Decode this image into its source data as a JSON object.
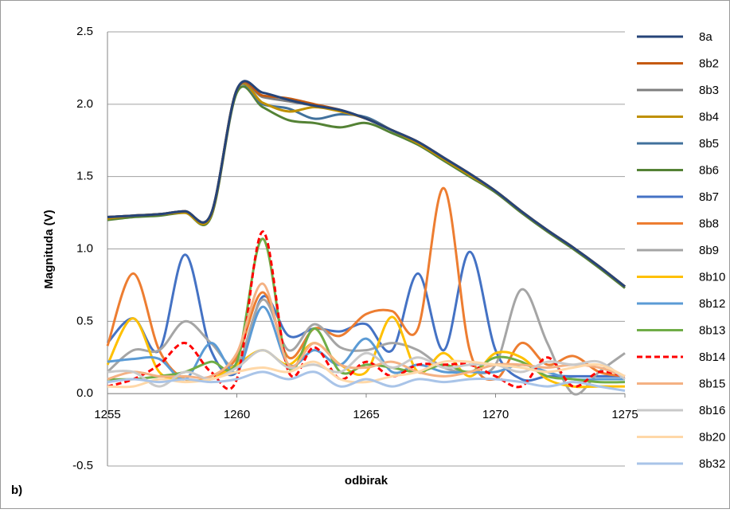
{
  "chart_data": {
    "type": "line",
    "panel_label": "b)",
    "x_label": "odbirak",
    "y_label": "Magnituda (V)",
    "xlim": [
      1255,
      1275
    ],
    "xticks": [
      1255,
      1260,
      1265,
      1270,
      1275
    ],
    "ylim": [
      -0.5,
      2.5
    ],
    "yticks": [
      2.5,
      {
        "value": 2,
        "label": "2.0"
      },
      1.5,
      {
        "value": 1,
        "label": "1.0"
      },
      0.5,
      {
        "value": 0,
        "label": "0.0"
      },
      -0.5
    ],
    "grid": true,
    "smooth": true,
    "legend": "right",
    "x": [
      1255,
      1256,
      1257,
      1258,
      1259,
      1260,
      1261,
      1262,
      1263,
      1264,
      1265,
      1266,
      1267,
      1268,
      1269,
      1270,
      1271,
      1272,
      1273,
      1274,
      1275
    ],
    "series": [
      {
        "name": "8a",
        "color": "#264478",
        "values": [
          1.22,
          1.23,
          1.24,
          1.26,
          1.24,
          2.1,
          2.08,
          2.03,
          1.99,
          1.96,
          1.9,
          1.82,
          1.74,
          1.63,
          1.52,
          1.4,
          1.26,
          1.13,
          1.01,
          0.88,
          0.74
        ]
      },
      {
        "name": "8b2",
        "color": "#c55a11",
        "values": [
          1.22,
          1.23,
          1.24,
          1.26,
          1.24,
          2.1,
          2.06,
          2.04,
          2.0,
          1.96,
          1.9,
          1.82,
          1.74,
          1.63,
          1.52,
          1.4,
          1.26,
          1.13,
          1.01,
          0.88,
          0.74
        ]
      },
      {
        "name": "8b3",
        "color": "#7f7f7f",
        "values": [
          1.22,
          1.23,
          1.24,
          1.26,
          1.24,
          2.1,
          2.05,
          2.02,
          1.99,
          1.96,
          1.9,
          1.82,
          1.74,
          1.63,
          1.52,
          1.4,
          1.26,
          1.13,
          1.01,
          0.88,
          0.74
        ]
      },
      {
        "name": "8b4",
        "color": "#bf9000",
        "values": [
          1.21,
          1.23,
          1.24,
          1.25,
          1.23,
          2.1,
          2.01,
          1.95,
          1.98,
          1.95,
          1.9,
          1.82,
          1.73,
          1.62,
          1.51,
          1.4,
          1.26,
          1.13,
          1.01,
          0.88,
          0.74
        ]
      },
      {
        "name": "8b5",
        "color": "#41719c",
        "values": [
          1.22,
          1.23,
          1.24,
          1.26,
          1.24,
          2.1,
          2.0,
          1.97,
          1.9,
          1.93,
          1.91,
          1.82,
          1.74,
          1.63,
          1.52,
          1.4,
          1.26,
          1.13,
          1.01,
          0.88,
          0.74
        ]
      },
      {
        "name": "8b6",
        "color": "#548235",
        "values": [
          1.2,
          1.22,
          1.23,
          1.25,
          1.22,
          2.08,
          1.98,
          1.89,
          1.87,
          1.84,
          1.87,
          1.8,
          1.72,
          1.61,
          1.5,
          1.39,
          1.25,
          1.12,
          1.0,
          0.87,
          0.73
        ]
      },
      {
        "name": "8b7",
        "color": "#4472c4",
        "values": [
          0.35,
          0.52,
          0.3,
          0.96,
          0.3,
          0.15,
          0.67,
          0.4,
          0.45,
          0.43,
          0.48,
          0.3,
          0.83,
          0.3,
          0.98,
          0.3,
          0.1,
          0.12,
          0.12,
          0.12,
          0.12
        ]
      },
      {
        "name": "8b8",
        "color": "#ed7d31",
        "values": [
          0.33,
          0.83,
          0.3,
          0.1,
          0.12,
          0.25,
          0.7,
          0.25,
          0.45,
          0.4,
          0.55,
          0.57,
          0.45,
          1.42,
          0.3,
          0.1,
          0.35,
          0.2,
          0.26,
          0.15,
          0.12
        ]
      },
      {
        "name": "8b9",
        "color": "#a5a5a5",
        "values": [
          0.15,
          0.3,
          0.3,
          0.5,
          0.35,
          0.2,
          0.65,
          0.3,
          0.48,
          0.32,
          0.3,
          0.35,
          0.3,
          0.18,
          0.15,
          0.2,
          0.72,
          0.35,
          0.0,
          0.15,
          0.28
        ]
      },
      {
        "name": "8b10",
        "color": "#ffc000",
        "values": [
          0.2,
          0.52,
          0.15,
          0.1,
          0.1,
          0.2,
          0.3,
          0.2,
          0.35,
          0.2,
          0.15,
          0.53,
          0.15,
          0.28,
          0.12,
          0.28,
          0.25,
          0.1,
          0.05,
          0.05,
          0.05
        ]
      },
      {
        "name": "8b12",
        "color": "#5b9bd5",
        "values": [
          0.22,
          0.24,
          0.24,
          0.1,
          0.35,
          0.15,
          0.6,
          0.2,
          0.3,
          0.2,
          0.38,
          0.15,
          0.2,
          0.15,
          0.15,
          0.15,
          0.2,
          0.15,
          0.1,
          0.1,
          0.1
        ]
      },
      {
        "name": "8b13",
        "color": "#70ad47",
        "values": [
          0.1,
          0.1,
          0.12,
          0.15,
          0.22,
          0.22,
          1.07,
          0.18,
          0.45,
          0.15,
          0.2,
          0.18,
          0.15,
          0.2,
          0.15,
          0.25,
          0.22,
          0.12,
          0.1,
          0.08,
          0.08
        ]
      },
      {
        "name": "8b14",
        "color": "#ff0000",
        "dashed": true,
        "values": [
          0.05,
          0.1,
          0.2,
          0.35,
          0.15,
          0.1,
          1.12,
          0.15,
          0.32,
          0.1,
          0.22,
          0.12,
          0.2,
          0.2,
          0.2,
          0.12,
          0.05,
          0.25,
          0.05,
          0.15,
          0.12
        ]
      },
      {
        "name": "8b15",
        "color": "#f4b183",
        "values": [
          0.1,
          0.15,
          0.12,
          0.12,
          0.12,
          0.28,
          0.76,
          0.2,
          0.35,
          0.2,
          0.18,
          0.22,
          0.15,
          0.12,
          0.15,
          0.2,
          0.2,
          0.18,
          0.2,
          0.18,
          0.12
        ]
      },
      {
        "name": "8b16",
        "color": "#c9c9c9",
        "values": [
          0.15,
          0.15,
          0.05,
          0.15,
          0.1,
          0.18,
          0.3,
          0.18,
          0.2,
          0.15,
          0.28,
          0.18,
          0.25,
          0.18,
          0.2,
          0.2,
          0.15,
          0.22,
          0.2,
          0.22,
          0.1
        ]
      },
      {
        "name": "8b20",
        "color": "#ffd8a8",
        "values": [
          0.05,
          0.05,
          0.1,
          0.08,
          0.1,
          0.15,
          0.18,
          0.15,
          0.22,
          0.1,
          0.08,
          0.12,
          0.15,
          0.22,
          0.22,
          0.2,
          0.18,
          0.15,
          0.18,
          0.2,
          0.12
        ]
      },
      {
        "name": "8b32",
        "color": "#a9c4e8",
        "values": [
          0.08,
          0.1,
          0.08,
          0.1,
          0.08,
          0.1,
          0.15,
          0.1,
          0.15,
          0.05,
          0.1,
          0.05,
          0.1,
          0.08,
          0.1,
          0.1,
          0.08,
          0.05,
          0.08,
          0.05,
          0.02
        ]
      }
    ]
  }
}
